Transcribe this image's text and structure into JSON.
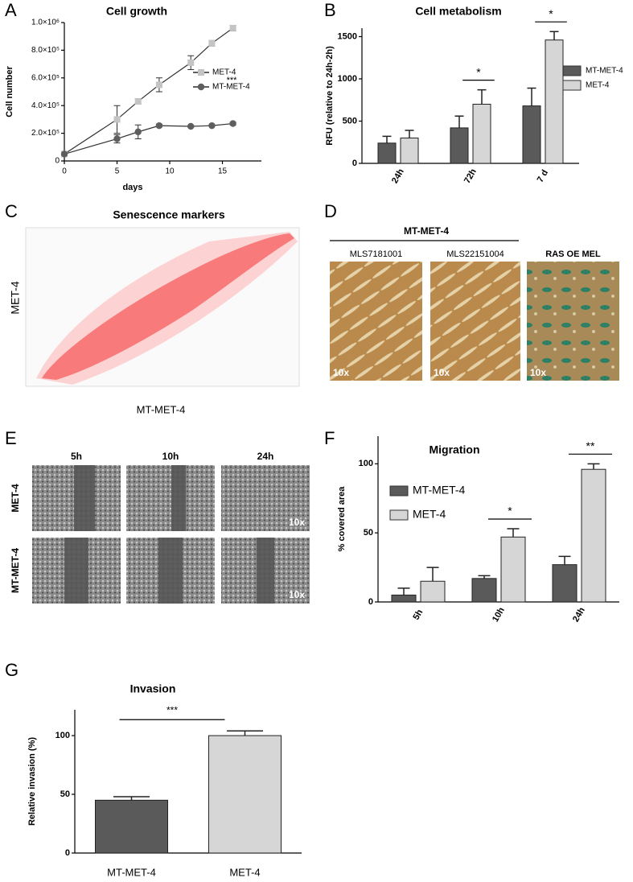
{
  "chart_data": [
    {
      "type": "line",
      "title": "Cell growth",
      "x_label": "days",
      "y_label": "Cell number",
      "x": [
        0,
        5,
        7,
        9,
        12,
        14,
        16
      ],
      "xlim": [
        0,
        18.7
      ],
      "xticks": [
        0,
        5,
        10,
        15
      ],
      "ylim": [
        0,
        1000000
      ],
      "yticks": [
        0,
        {
          "value": 200000,
          "label": "2.0×10⁵"
        },
        {
          "value": 400000,
          "label": "4.0×10⁵"
        },
        {
          "value": 600000,
          "label": "6.0×10⁵"
        },
        {
          "value": 800000,
          "label": "8.0×10⁵"
        },
        {
          "value": 1000000,
          "label": "1.0×10⁶"
        }
      ],
      "series": [
        {
          "name": "MET-4",
          "color": "#c4c4c4",
          "marker": "square",
          "values": [
            50000,
            300000,
            430000,
            550000,
            710000,
            850000,
            960000
          ],
          "errors": [
            0,
            100000,
            20000,
            50000,
            50000,
            20000,
            20000
          ]
        },
        {
          "name": "MT-MET-4",
          "color": "#5e5e5e",
          "marker": "circle",
          "values": [
            50000,
            160000,
            210000,
            255000,
            250000,
            255000,
            270000
          ],
          "errors": [
            0,
            30000,
            50000,
            10000,
            5000,
            5000,
            10000
          ]
        }
      ],
      "annotation": "***"
    },
    {
      "type": "bar",
      "title": "Cell metabolism",
      "y_label": "RFU (relative to 24h-2h)",
      "categories": [
        "24h",
        "72h",
        "7 d"
      ],
      "ylim": [
        0,
        1600
      ],
      "yticks": [
        0,
        500,
        1000,
        1500
      ],
      "series": [
        {
          "name": "MT-MET-4",
          "color": "#5a5a5a",
          "values": [
            240,
            420,
            680
          ],
          "errors": [
            80,
            140,
            210
          ]
        },
        {
          "name": "MET-4",
          "color": "#d6d6d6",
          "values": [
            300,
            700,
            1460
          ],
          "errors": [
            90,
            170,
            100
          ]
        }
      ],
      "significance": [
        null,
        "*",
        "*"
      ]
    },
    {
      "type": "bar",
      "title": "Migration",
      "y_label": "% covered area",
      "categories": [
        "5h",
        "10h",
        "24h"
      ],
      "ylim": [
        0,
        120
      ],
      "yticks": [
        0,
        50,
        100
      ],
      "series": [
        {
          "name": "MT-MET-4",
          "color": "#5a5a5a",
          "values": [
            5,
            17,
            27
          ],
          "errors": [
            5,
            2,
            6
          ]
        },
        {
          "name": "MET-4",
          "color": "#d6d6d6",
          "values": [
            15,
            47,
            96
          ],
          "errors": [
            10,
            6,
            4
          ]
        }
      ],
      "significance": [
        null,
        "*",
        "**"
      ]
    },
    {
      "type": "bar",
      "title": "Invasion",
      "y_label": "Relative invasion (%)",
      "categories": [
        "MT-MET-4",
        "MET-4"
      ],
      "ylim": [
        0,
        122
      ],
      "yticks": [
        0,
        50,
        100
      ],
      "values": [
        45,
        100
      ],
      "errors": [
        3,
        4
      ],
      "colors": [
        "#5a5a5a",
        "#d6d6d6"
      ],
      "significance": "***"
    }
  ],
  "figure": {
    "panel_labels": [
      "A",
      "B",
      "C",
      "D",
      "E",
      "F",
      "G"
    ],
    "senescence": {
      "title": "Senescence markers",
      "x_label": "MT-MET-4",
      "y_label": "MET-4"
    },
    "morphology": {
      "group_label": "MT-MET-4",
      "columns": [
        "MLS7181001",
        "MLS22151004",
        "RAS OE MEL"
      ],
      "magnification": "10x"
    },
    "wound": {
      "columns": [
        "5h",
        "10h",
        "24h"
      ],
      "rows": [
        "MET-4",
        "MT-MET-4"
      ],
      "magnification": "10x"
    }
  }
}
